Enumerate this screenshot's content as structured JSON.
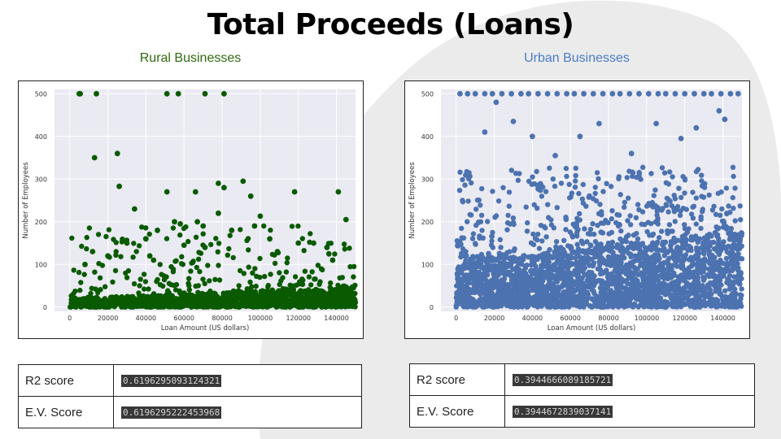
{
  "title": "Total Proceeds (Loans)",
  "panels": [
    {
      "key": "rural",
      "heading": "Rural Businesses",
      "scores": {
        "r2_label": "R2 score",
        "r2_value": "0.6196295093124321",
        "ev_label": "E.V. Score",
        "ev_value": "0.6196295222453968"
      }
    },
    {
      "key": "urban",
      "heading": "Urban Businesses",
      "scores": {
        "r2_label": "R2 score",
        "r2_value": "0.3944666089185721",
        "ev_label": "E.V. Score",
        "ev_value": "0.3944672839037141"
      }
    }
  ],
  "colors": {
    "rural_points": "#0a5a00",
    "urban_points": "#4c72b0",
    "plot_bg": "#eaeaf2",
    "grid": "#ffffff",
    "background_shape": "#ebebeb"
  },
  "chart_data": [
    {
      "type": "scatter",
      "title": "",
      "xlabel": "Loan Amount (US dollars)",
      "ylabel": "Number of Employees",
      "xlim": [
        -8000,
        150000
      ],
      "ylim": [
        -10,
        510
      ],
      "xticks": [
        "0",
        "20000",
        "40000",
        "60000",
        "80000",
        "100000",
        "120000",
        "140000"
      ],
      "yticks": [
        "0",
        "100",
        "200",
        "300",
        "400",
        "500"
      ],
      "grid": true,
      "legend": "none",
      "points_x": [
        5000,
        5500,
        14000,
        51000,
        57000,
        71000,
        81000,
        13000,
        25000,
        26000,
        34000,
        51000,
        66000,
        67000,
        78000,
        81000,
        91000,
        95000,
        100000,
        118000,
        141000,
        145000,
        46000,
        55000,
        58000,
        70000,
        78000,
        30000,
        40000,
        42000,
        60000,
        85000,
        97000,
        105000,
        120000,
        135000,
        8000,
        12000,
        20000,
        44000,
        71000,
        109000,
        128000,
        138000
      ],
      "points_y": [
        500,
        500,
        500,
        500,
        500,
        500,
        500,
        350,
        360,
        283,
        230,
        270,
        270,
        200,
        290,
        280,
        295,
        260,
        213,
        270,
        270,
        205,
        180,
        200,
        195,
        190,
        220,
        150,
        160,
        120,
        145,
        180,
        190,
        160,
        150,
        140,
        100,
        130,
        120,
        110,
        140,
        130,
        150,
        110
      ],
      "dense_cloud": {
        "x_range": [
          0,
          150000
        ],
        "y_base_max": [
          20,
          45
        ],
        "y_outlier_max": 190,
        "count": 1500
      }
    },
    {
      "type": "scatter",
      "title": "",
      "xlabel": "Loan Amount (US dollars)",
      "ylabel": "Number of Employees",
      "xlim": [
        -8000,
        150000
      ],
      "ylim": [
        -10,
        510
      ],
      "xticks": [
        "0",
        "20000",
        "40000",
        "60000",
        "80000",
        "100000",
        "120000",
        "140000"
      ],
      "yticks": [
        "0",
        "100",
        "200",
        "300",
        "400",
        "500"
      ],
      "grid": true,
      "legend": "none",
      "points_x": [
        2000,
        6000,
        10000,
        15000,
        19000,
        24000,
        29000,
        34000,
        38000,
        43000,
        48000,
        53000,
        58000,
        62000,
        67000,
        72000,
        77000,
        82000,
        86000,
        91000,
        96000,
        101000,
        106000,
        110000,
        115000,
        120000,
        125000,
        130000,
        134000,
        139000,
        144000,
        148000,
        15000,
        21000,
        30000,
        40000,
        52000,
        65000,
        75000,
        92000,
        105000,
        118000,
        126000,
        138000,
        141000
      ],
      "points_y": [
        500,
        500,
        500,
        500,
        500,
        500,
        500,
        500,
        500,
        500,
        500,
        500,
        500,
        500,
        500,
        500,
        500,
        500,
        500,
        500,
        500,
        500,
        500,
        500,
        500,
        500,
        500,
        500,
        500,
        500,
        500,
        500,
        410,
        480,
        435,
        400,
        355,
        400,
        430,
        360,
        430,
        395,
        420,
        460,
        440
      ],
      "dense_cloud": {
        "x_range": [
          0,
          150000
        ],
        "y_base_max": [
          100,
          170
        ],
        "y_outlier_max": 330,
        "count": 2800
      }
    }
  ]
}
